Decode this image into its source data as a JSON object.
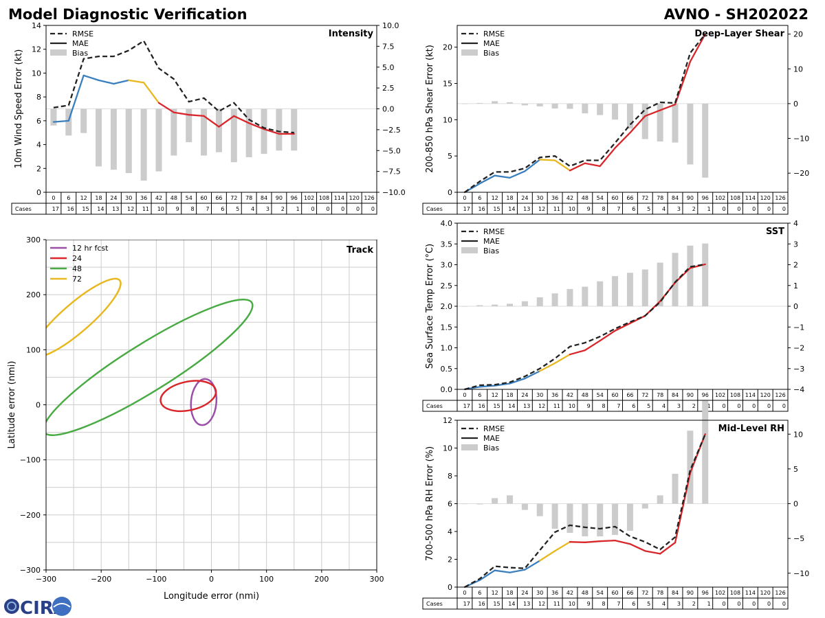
{
  "header": {
    "title": "Model Diagnostic Verification",
    "subtitle": "AVNO - SH202022"
  },
  "logo": {
    "text": "CIRA"
  },
  "hours_row": [
    "0",
    "6",
    "12",
    "18",
    "24",
    "30",
    "36",
    "42",
    "48",
    "54",
    "60",
    "66",
    "72",
    "78",
    "84",
    "90",
    "96",
    "102",
    "108",
    "114",
    "120",
    "126"
  ],
  "cases_label": "Cases",
  "cases": [
    "17",
    "16",
    "15",
    "14",
    "13",
    "12",
    "11",
    "10",
    "9",
    "8",
    "7",
    "6",
    "5",
    "4",
    "3",
    "2",
    "1",
    "0",
    "0",
    "0",
    "0",
    "0"
  ],
  "legend_labels": {
    "rmse": "RMSE",
    "mae": "MAE",
    "bias": "Bias"
  },
  "colors": {
    "early": "#3a7fbd",
    "mid": "#e8b820",
    "late": "#d8262a",
    "rmse": "#222222",
    "bias": "#cccccc",
    "grid": "#cccccc",
    "track_12": "#9b4fa8",
    "track_24": "#d8262a",
    "track_48": "#4aab45",
    "track_72": "#e8b820"
  },
  "chart_data": [
    {
      "id": "intensity",
      "type": "line",
      "title": "Intensity",
      "ylabel": "10m Wind Speed Error (kt)",
      "x": [
        0,
        6,
        12,
        18,
        24,
        30,
        36,
        42,
        48,
        54,
        60,
        66,
        72,
        78,
        84,
        90,
        96
      ],
      "ylim": [
        0,
        14
      ],
      "yticks": [
        "0",
        "2",
        "4",
        "6",
        "8",
        "10",
        "12",
        "14"
      ],
      "y2lim": [
        -10,
        10
      ],
      "y2ticks": [
        "−10.0",
        "−7.5",
        "−5.0",
        "−2.5",
        "0.0",
        "2.5",
        "5.0",
        "7.5",
        "10.0"
      ],
      "rmse": [
        7.1,
        7.3,
        11.2,
        11.4,
        11.4,
        11.9,
        12.7,
        10.4,
        9.5,
        7.6,
        7.9,
        6.8,
        7.5,
        6.1,
        5.4,
        5.1,
        5.0
      ],
      "mae": [
        5.9,
        6.0,
        9.8,
        9.4,
        9.1,
        9.4,
        9.2,
        7.5,
        6.7,
        6.5,
        6.4,
        5.5,
        6.4,
        5.8,
        5.3,
        4.9,
        4.9
      ],
      "bias": [
        -2.0,
        -3.2,
        -2.9,
        -6.9,
        -7.3,
        -7.7,
        -8.6,
        -7.5,
        -5.6,
        -4.0,
        -5.6,
        -5.2,
        -6.4,
        -5.8,
        -5.4,
        -5.0,
        -5.0
      ]
    },
    {
      "id": "shear",
      "type": "line",
      "title": "Deep-Layer Shear",
      "ylabel": "200-850 hPa Shear Error (kt)",
      "x": [
        0,
        6,
        12,
        18,
        24,
        30,
        36,
        42,
        48,
        54,
        60,
        66,
        72,
        78,
        84,
        90,
        96
      ],
      "ylim": [
        0,
        23
      ],
      "yticks": [
        "0",
        "5",
        "10",
        "15",
        "20"
      ],
      "y2lim": [
        -25.5,
        22.5
      ],
      "y2ticks": [
        "−20",
        "−10",
        "0",
        "10",
        "20"
      ],
      "rmse": [
        0,
        1.5,
        2.8,
        2.8,
        3.3,
        4.8,
        5.0,
        3.6,
        4.4,
        4.4,
        6.8,
        9.3,
        11.4,
        12.4,
        12.3,
        19.2,
        21.8
      ],
      "mae": [
        0,
        1.2,
        2.3,
        2.0,
        2.9,
        4.5,
        4.4,
        3.0,
        4.0,
        3.6,
        6.1,
        8.2,
        10.5,
        11.3,
        12.1,
        18.0,
        21.8
      ],
      "bias": [
        0,
        0.2,
        0.7,
        0.4,
        -0.5,
        -0.8,
        -1.4,
        -1.5,
        -2.8,
        -3.3,
        -4.6,
        -7.2,
        -10.2,
        -10.9,
        -11.2,
        -17.5,
        -21.3
      ]
    },
    {
      "id": "sst",
      "type": "line",
      "title": "SST",
      "ylabel": "Sea Surface Temp Error (°C)",
      "x": [
        0,
        6,
        12,
        18,
        24,
        30,
        36,
        42,
        48,
        54,
        60,
        66,
        72,
        78,
        84,
        90,
        96
      ],
      "ylim": [
        0,
        4
      ],
      "yticks": [
        "0.0",
        "0.5",
        "1.0",
        "1.5",
        "2.0",
        "2.5",
        "3.0",
        "3.5",
        "4.0"
      ],
      "y2lim": [
        -4,
        4
      ],
      "y2ticks": [
        "−4",
        "−3",
        "−2",
        "−1",
        "0",
        "1",
        "2",
        "3",
        "4"
      ],
      "rmse": [
        0,
        0.1,
        0.11,
        0.17,
        0.31,
        0.5,
        0.74,
        1.03,
        1.12,
        1.27,
        1.46,
        1.62,
        1.77,
        2.1,
        2.58,
        2.95,
        3.01
      ],
      "mae": [
        0,
        0.06,
        0.09,
        0.14,
        0.26,
        0.44,
        0.63,
        0.84,
        0.94,
        1.17,
        1.41,
        1.59,
        1.77,
        2.12,
        2.57,
        2.92,
        3.01
      ],
      "bias": [
        0,
        0.05,
        0.08,
        0.12,
        0.24,
        0.43,
        0.62,
        0.83,
        0.94,
        1.2,
        1.45,
        1.61,
        1.77,
        2.1,
        2.57,
        2.92,
        3.02
      ]
    },
    {
      "id": "rh",
      "type": "line",
      "title": "Mid-Level RH",
      "ylabel": "700-500 hPa RH Error (%)",
      "x": [
        0,
        6,
        12,
        18,
        24,
        30,
        36,
        42,
        48,
        54,
        60,
        66,
        72,
        78,
        84,
        90,
        96
      ],
      "ylim": [
        0,
        12
      ],
      "yticks": [
        "0",
        "2",
        "4",
        "6",
        "8",
        "10",
        "12"
      ],
      "y2lim": [
        -12,
        12
      ],
      "y2ticks": [
        "−10",
        "−5",
        "0",
        "5",
        "10"
      ],
      "rmse": [
        0,
        0.6,
        1.5,
        1.4,
        1.35,
        2.65,
        3.95,
        4.45,
        4.3,
        4.2,
        4.35,
        3.65,
        3.25,
        2.7,
        3.6,
        8.4,
        11.0
      ],
      "mae": [
        0,
        0.5,
        1.2,
        1.05,
        1.25,
        1.9,
        2.6,
        3.25,
        3.22,
        3.3,
        3.35,
        3.1,
        2.6,
        2.4,
        3.2,
        8.2,
        11.0
      ],
      "bias": [
        0,
        -0.1,
        0.8,
        1.2,
        -0.9,
        -1.8,
        -3.6,
        -4.2,
        -4.7,
        -4.7,
        -4.5,
        -3.9,
        -0.7,
        1.2,
        4.3,
        10.5,
        14.8
      ]
    },
    {
      "id": "track",
      "type": "ellipse",
      "title": "Track",
      "xlabel": "Longitude error (nmi)",
      "ylabel": "Latitude error (nmi)",
      "xlim": [
        -300,
        300
      ],
      "ylim": [
        -300,
        300
      ],
      "ticks": [
        "−300",
        "−200",
        "−100",
        "0",
        "100",
        "200",
        "300"
      ],
      "ellipses": [
        {
          "label": "12 hr fcst",
          "color_key": "track_12",
          "cx": -14,
          "cy": 5,
          "a": 42,
          "b": 23,
          "angle": 95
        },
        {
          "label": "24",
          "color_key": "track_24",
          "cx": -42,
          "cy": 16,
          "a": 51,
          "b": 26,
          "angle": -12
        },
        {
          "label": "48",
          "color_key": "track_48",
          "cx": -115,
          "cy": 68,
          "a": 222,
          "b": 43,
          "angle": -32
        },
        {
          "label": "72",
          "color_key": "track_72",
          "cx": -245,
          "cy": 158,
          "a": 104,
          "b": 26,
          "angle": -41
        }
      ]
    }
  ]
}
